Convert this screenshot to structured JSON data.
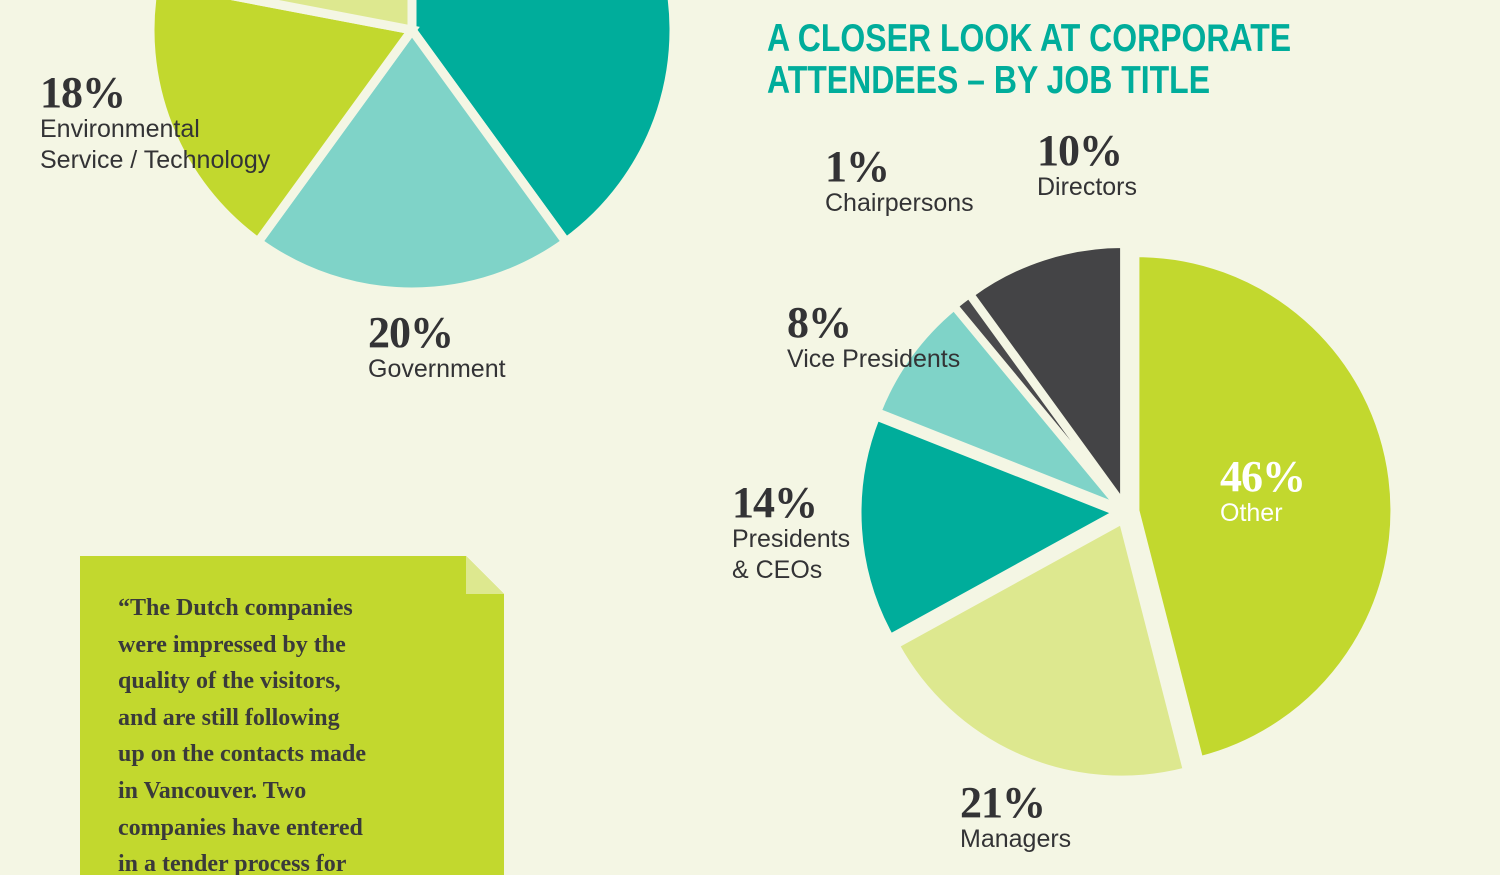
{
  "chart_data": [
    {
      "type": "pie",
      "categories": [
        null,
        "Government",
        "Environmental Service / Technology",
        null
      ],
      "values": [
        40,
        20,
        18,
        22
      ],
      "value_labels": [
        null,
        "20%",
        "18%",
        null
      ],
      "colors": [
        "#00ad9b",
        "#7fd3c8",
        "#c2d82e",
        "#dde88f"
      ]
    },
    {
      "type": "pie",
      "title": "A CLOSER LOOK AT CORPORATE ATTENDEES – BY JOB TITLE",
      "categories": [
        "Other",
        "Managers",
        "Presidents & CEOs",
        "Vice Presidents",
        "Chairpersons",
        "Directors"
      ],
      "values": [
        46,
        21,
        14,
        8,
        1,
        10
      ],
      "value_labels": [
        "46%",
        "21%",
        "14%",
        "8%",
        "1%",
        "10%"
      ],
      "colors": [
        "#c2d82e",
        "#dde88f",
        "#00ad9b",
        "#7fd3c8",
        "#4a4a4c",
        "#444446"
      ]
    }
  ],
  "quote": {
    "lines": [
      "“The Dutch companies",
      "were impressed by the",
      "quality of the visitors,",
      "and are still following",
      "up on the contacts made",
      "in Vancouver. Two",
      "companies have entered",
      "in a tender process for"
    ]
  }
}
